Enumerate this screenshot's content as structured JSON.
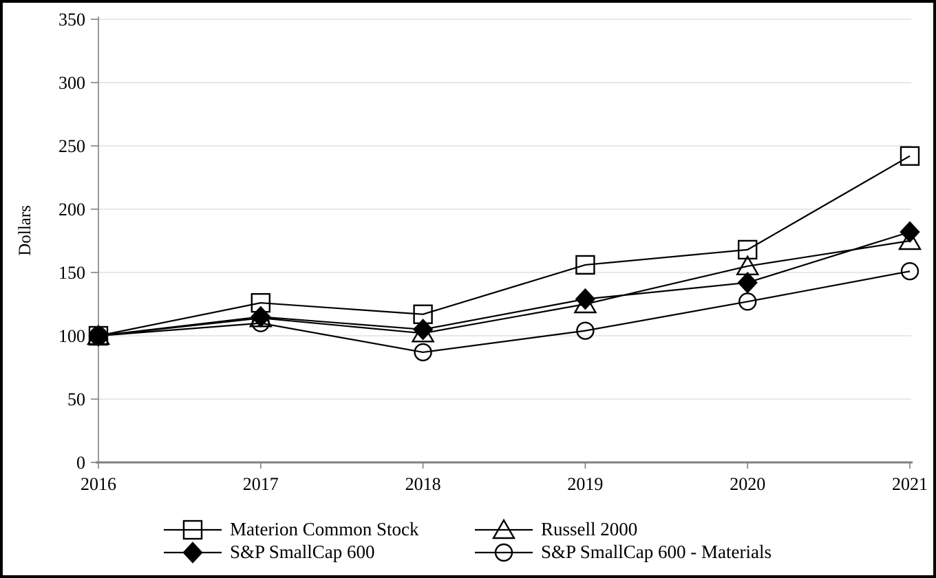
{
  "page": {
    "background": "#ffffff",
    "border_color": "#000000"
  },
  "chart_data": {
    "type": "line",
    "title": "",
    "xlabel": "",
    "ylabel": "Dollars",
    "x_labels": [
      "2016",
      "2017",
      "2018",
      "2019",
      "2020",
      "2021"
    ],
    "ylim": [
      0,
      350
    ],
    "yticks": [
      0,
      50,
      100,
      150,
      200,
      250,
      300,
      350
    ],
    "grid": true,
    "legend_position": "bottom",
    "series": [
      {
        "name": "Materion Common Stock",
        "marker": "square",
        "fill": "hollow",
        "values": [
          100,
          126,
          117,
          156,
          168,
          242
        ]
      },
      {
        "name": "Russell 2000",
        "marker": "triangle",
        "fill": "hollow",
        "values": [
          100,
          114,
          102,
          125,
          155,
          175
        ]
      },
      {
        "name": "S&P SmallCap 600",
        "marker": "diamond",
        "fill": "solid",
        "values": [
          100,
          115,
          105,
          129,
          142,
          182
        ]
      },
      {
        "name": "S&P SmallCap 600 - Materials",
        "marker": "circle",
        "fill": "hollow",
        "values": [
          100,
          110,
          87,
          104,
          127,
          151
        ]
      }
    ],
    "colors": {
      "line": "#000000",
      "marker": "#000000",
      "axis": "#808080",
      "gridline": "#d9d9d9",
      "text": "#000000",
      "background": "#ffffff"
    }
  }
}
